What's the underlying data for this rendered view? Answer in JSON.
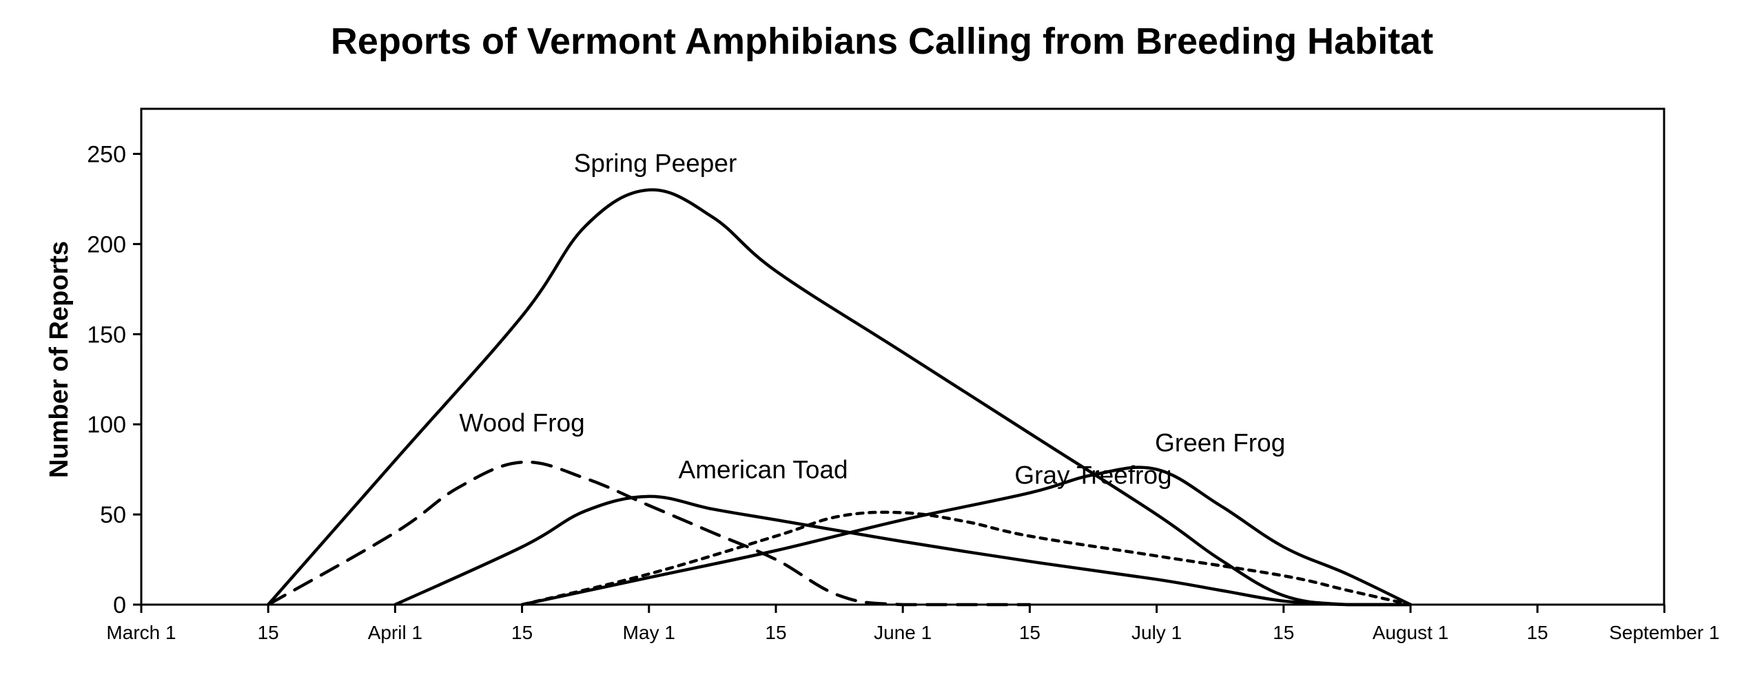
{
  "chart_data": {
    "type": "line",
    "title": "Reports of Vermont Amphibians Calling from Breeding Habitat",
    "xlabel": "",
    "ylabel": "Number of Reports",
    "x_ticks": [
      "March 1",
      "15",
      "April 1",
      "15",
      "May 1",
      "15",
      "June 1",
      "15",
      "July 1",
      "15",
      "August 1",
      "15",
      "September 1"
    ],
    "xlim": [
      0,
      12
    ],
    "ylim": [
      0,
      275
    ],
    "y_ticks": [
      0,
      50,
      100,
      150,
      200,
      250
    ],
    "grid": false,
    "legend": "none",
    "series": [
      {
        "name": "Spring Peeper",
        "style": "solid",
        "points": [
          [
            1,
            0
          ],
          [
            2,
            80
          ],
          [
            3,
            160
          ],
          [
            3.5,
            210
          ],
          [
            4,
            230
          ],
          [
            4.5,
            215
          ],
          [
            5,
            185
          ],
          [
            6,
            140
          ],
          [
            7,
            95
          ],
          [
            8,
            50
          ],
          [
            8.5,
            25
          ],
          [
            9,
            5
          ],
          [
            9.5,
            0
          ],
          [
            10,
            0
          ]
        ]
      },
      {
        "name": "Wood Frog",
        "style": "dashed",
        "points": [
          [
            1,
            0
          ],
          [
            2,
            40
          ],
          [
            2.5,
            65
          ],
          [
            3,
            79
          ],
          [
            3.5,
            70
          ],
          [
            4,
            55
          ],
          [
            4.5,
            40
          ],
          [
            5,
            25
          ],
          [
            5.5,
            5
          ],
          [
            6,
            0
          ],
          [
            7,
            0
          ]
        ]
      },
      {
        "name": "American Toad",
        "style": "solid",
        "points": [
          [
            2,
            0
          ],
          [
            3,
            32
          ],
          [
            3.5,
            52
          ],
          [
            4,
            60
          ],
          [
            4.5,
            53
          ],
          [
            5,
            47
          ],
          [
            6,
            35
          ],
          [
            7,
            24
          ],
          [
            8,
            14
          ],
          [
            8.5,
            8
          ],
          [
            9,
            2
          ],
          [
            9.5,
            0
          ],
          [
            10,
            0
          ]
        ]
      },
      {
        "name": "Gray Treefrog",
        "style": "dotted",
        "points": [
          [
            3,
            0
          ],
          [
            4,
            17
          ],
          [
            5,
            38
          ],
          [
            5.5,
            49
          ],
          [
            6,
            51
          ],
          [
            6.5,
            46
          ],
          [
            7,
            38
          ],
          [
            8,
            27
          ],
          [
            9,
            16
          ],
          [
            9.5,
            8
          ],
          [
            10,
            0
          ]
        ]
      },
      {
        "name": "Green Frog",
        "style": "solid",
        "points": [
          [
            3,
            0
          ],
          [
            4,
            15
          ],
          [
            5,
            30
          ],
          [
            6,
            47
          ],
          [
            7,
            62
          ],
          [
            7.5,
            72
          ],
          [
            8,
            75
          ],
          [
            8.5,
            55
          ],
          [
            9,
            32
          ],
          [
            9.5,
            17
          ],
          [
            10,
            0
          ]
        ]
      }
    ],
    "annotations": [
      {
        "text": "Spring Peeper",
        "x": 4.05,
        "y": 240
      },
      {
        "text": "Wood Frog",
        "x": 3.0,
        "y": 96
      },
      {
        "text": "American Toad",
        "x": 4.9,
        "y": 70
      },
      {
        "text": "Gray Treefrog",
        "x": 7.5,
        "y": 67
      },
      {
        "text": "Green Frog",
        "x": 8.5,
        "y": 85
      }
    ]
  }
}
